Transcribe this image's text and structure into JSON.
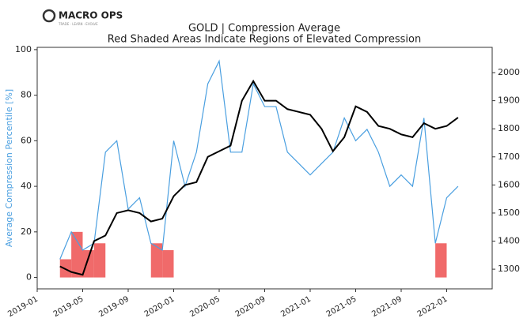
{
  "logo": {
    "title": "MACRO OPS",
    "tagline": "TRADE · LEARN · EVOLVE"
  },
  "chart_data": {
    "type": "line",
    "title": "GOLD | Compression Average",
    "subtitle": "Red Shaded Areas Indicate Regions of Elevated Compression",
    "y_label": "Average Compression Percentile [%]",
    "x": [
      "2019-03",
      "2019-04",
      "2019-05",
      "2019-06",
      "2019-07",
      "2019-08",
      "2019-09",
      "2019-10",
      "2019-11",
      "2019-12",
      "2020-01",
      "2020-02",
      "2020-03",
      "2020-04",
      "2020-05",
      "2020-06",
      "2020-07",
      "2020-08",
      "2020-09",
      "2020-10",
      "2020-11",
      "2020-12",
      "2021-01",
      "2021-02",
      "2021-03",
      "2021-04",
      "2021-05",
      "2021-06",
      "2021-07",
      "2021-08",
      "2021-09",
      "2021-10",
      "2021-11",
      "2021-12",
      "2022-01",
      "2022-02"
    ],
    "series": [
      {
        "name": "Compression",
        "color": "#4a9fe0",
        "axis": "y",
        "values": [
          8,
          20,
          12,
          15,
          55,
          60,
          30,
          35,
          15,
          12,
          60,
          40,
          55,
          85,
          95,
          55,
          55,
          85,
          75,
          75,
          55,
          50,
          45,
          50,
          55,
          70,
          60,
          65,
          55,
          40,
          45,
          40,
          70,
          15,
          35,
          40
        ]
      },
      {
        "name": "Gold",
        "color": "#000000",
        "axis": "y2",
        "values": [
          1310,
          1290,
          1280,
          1400,
          1420,
          1500,
          1510,
          1500,
          1470,
          1480,
          1560,
          1600,
          1610,
          1700,
          1720,
          1740,
          1900,
          1970,
          1900,
          1900,
          1870,
          1860,
          1850,
          1800,
          1720,
          1770,
          1880,
          1860,
          1810,
          1800,
          1780,
          1770,
          1820,
          1800,
          1810,
          1840
        ]
      }
    ],
    "shaded": [
      "2019-03",
      "2019-04",
      "2019-05",
      "2019-06",
      "2019-11",
      "2019-12",
      "2021-12"
    ],
    "shade_color": "#f06a6a",
    "xlim": [
      "2019-01",
      "2022-05"
    ],
    "xticks": [
      "2019-01",
      "2019-05",
      "2019-09",
      "2020-01",
      "2020-05",
      "2020-09",
      "2021-01",
      "2021-05",
      "2021-09",
      "2022-01"
    ],
    "ylim": [
      -5,
      101
    ],
    "yticks": [
      0,
      20,
      40,
      60,
      80,
      100
    ],
    "y2lim": [
      1230,
      2090
    ],
    "y2ticks": [
      1300,
      1400,
      1500,
      1600,
      1700,
      1800,
      1900,
      2000
    ]
  }
}
